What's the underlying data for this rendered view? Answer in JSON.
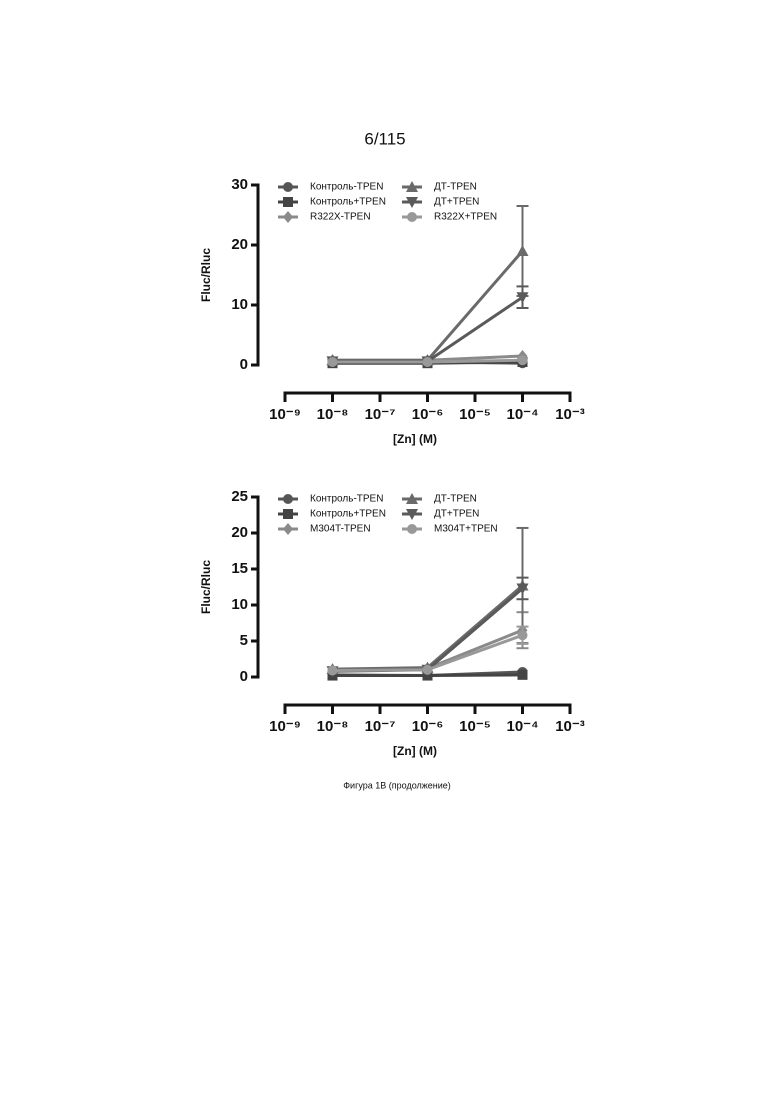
{
  "page_number": "6/115",
  "caption": "Фигура 1В (продолжение)",
  "chart_data": [
    {
      "type": "line",
      "y_label": "Fluc/Rluc",
      "x_label": "[Zn] (M)",
      "log_x": true,
      "x": [
        1e-08,
        1e-06,
        0.0001
      ],
      "xlim": [
        1e-09,
        0.001
      ],
      "xticks": [
        {
          "value": 1e-09,
          "label": "10⁻⁹"
        },
        {
          "value": 1e-08,
          "label": "10⁻⁸"
        },
        {
          "value": 1e-07,
          "label": "10⁻⁷"
        },
        {
          "value": 1e-06,
          "label": "10⁻⁶"
        },
        {
          "value": 1e-05,
          "label": "10⁻⁵"
        },
        {
          "value": 0.0001,
          "label": "10⁻⁴"
        },
        {
          "value": 0.001,
          "label": "10⁻³"
        }
      ],
      "ylim": [
        0,
        30
      ],
      "yticks": [
        0,
        10,
        20,
        30
      ],
      "series": [
        {
          "name": "Контроль-TPEN",
          "color": "#555555",
          "marker": "circle",
          "values": [
            0.5,
            0.5,
            0.3
          ],
          "errors": [
            null,
            null,
            null
          ]
        },
        {
          "name": "Контроль+TPEN",
          "color": "#444444",
          "marker": "square",
          "values": [
            0.3,
            0.3,
            0.5
          ],
          "errors": [
            null,
            null,
            null
          ]
        },
        {
          "name": "R322X-TPEN",
          "color": "#8a8a8a",
          "marker": "diamond",
          "values": [
            0.8,
            0.8,
            1.5
          ],
          "errors": [
            null,
            null,
            null
          ]
        },
        {
          "name": "ДТ-TPEN",
          "color": "#6a6a6a",
          "marker": "triangle",
          "values": [
            0.8,
            0.8,
            19
          ],
          "errors": [
            null,
            null,
            7.5
          ]
        },
        {
          "name": "ДТ+TPEN",
          "color": "#5a5a5a",
          "marker": "triangle-down",
          "values": [
            0.6,
            0.6,
            11.3
          ],
          "errors": [
            null,
            null,
            1.8
          ]
        },
        {
          "name": "R322X+TPEN",
          "color": "#999999",
          "marker": "circle",
          "values": [
            0.5,
            0.5,
            0.8
          ],
          "errors": [
            null,
            null,
            null
          ]
        }
      ]
    },
    {
      "type": "line",
      "y_label": "Fluc/Rluc",
      "x_label": "[Zn] (M)",
      "log_x": true,
      "x": [
        1e-08,
        1e-06,
        0.0001
      ],
      "xlim": [
        1e-09,
        0.001
      ],
      "xticks": [
        {
          "value": 1e-09,
          "label": "10⁻⁹"
        },
        {
          "value": 1e-08,
          "label": "10⁻⁸"
        },
        {
          "value": 1e-07,
          "label": "10⁻⁷"
        },
        {
          "value": 1e-06,
          "label": "10⁻⁶"
        },
        {
          "value": 1e-05,
          "label": "10⁻⁵"
        },
        {
          "value": 0.0001,
          "label": "10⁻⁴"
        },
        {
          "value": 0.001,
          "label": "10⁻³"
        }
      ],
      "ylim": [
        0,
        25
      ],
      "yticks": [
        0,
        5,
        10,
        15,
        20,
        25
      ],
      "series": [
        {
          "name": "Контроль-TPEN",
          "color": "#555555",
          "marker": "circle",
          "values": [
            0.3,
            0.2,
            0.7
          ],
          "errors": [
            null,
            null,
            null
          ]
        },
        {
          "name": "Контроль+TPEN",
          "color": "#444444",
          "marker": "square",
          "values": [
            0.2,
            0.2,
            0.3
          ],
          "errors": [
            null,
            null,
            null
          ]
        },
        {
          "name": "M304T-TPEN",
          "color": "#8a8a8a",
          "marker": "diamond",
          "values": [
            1.0,
            1.2,
            6.5
          ],
          "errors": [
            null,
            null,
            2.5
          ]
        },
        {
          "name": "ДТ-TPEN",
          "color": "#6a6a6a",
          "marker": "triangle",
          "values": [
            1.1,
            1.3,
            12.7
          ],
          "errors": [
            null,
            null,
            8
          ]
        },
        {
          "name": "ДТ+TPEN",
          "color": "#5a5a5a",
          "marker": "triangle-down",
          "values": [
            0.8,
            1.0,
            12.3
          ],
          "errors": [
            null,
            null,
            1.5
          ]
        },
        {
          "name": "M304T+TPEN",
          "color": "#999999",
          "marker": "circle",
          "values": [
            0.9,
            1.0,
            5.8
          ],
          "errors": [
            null,
            null,
            1.2
          ]
        }
      ]
    }
  ]
}
